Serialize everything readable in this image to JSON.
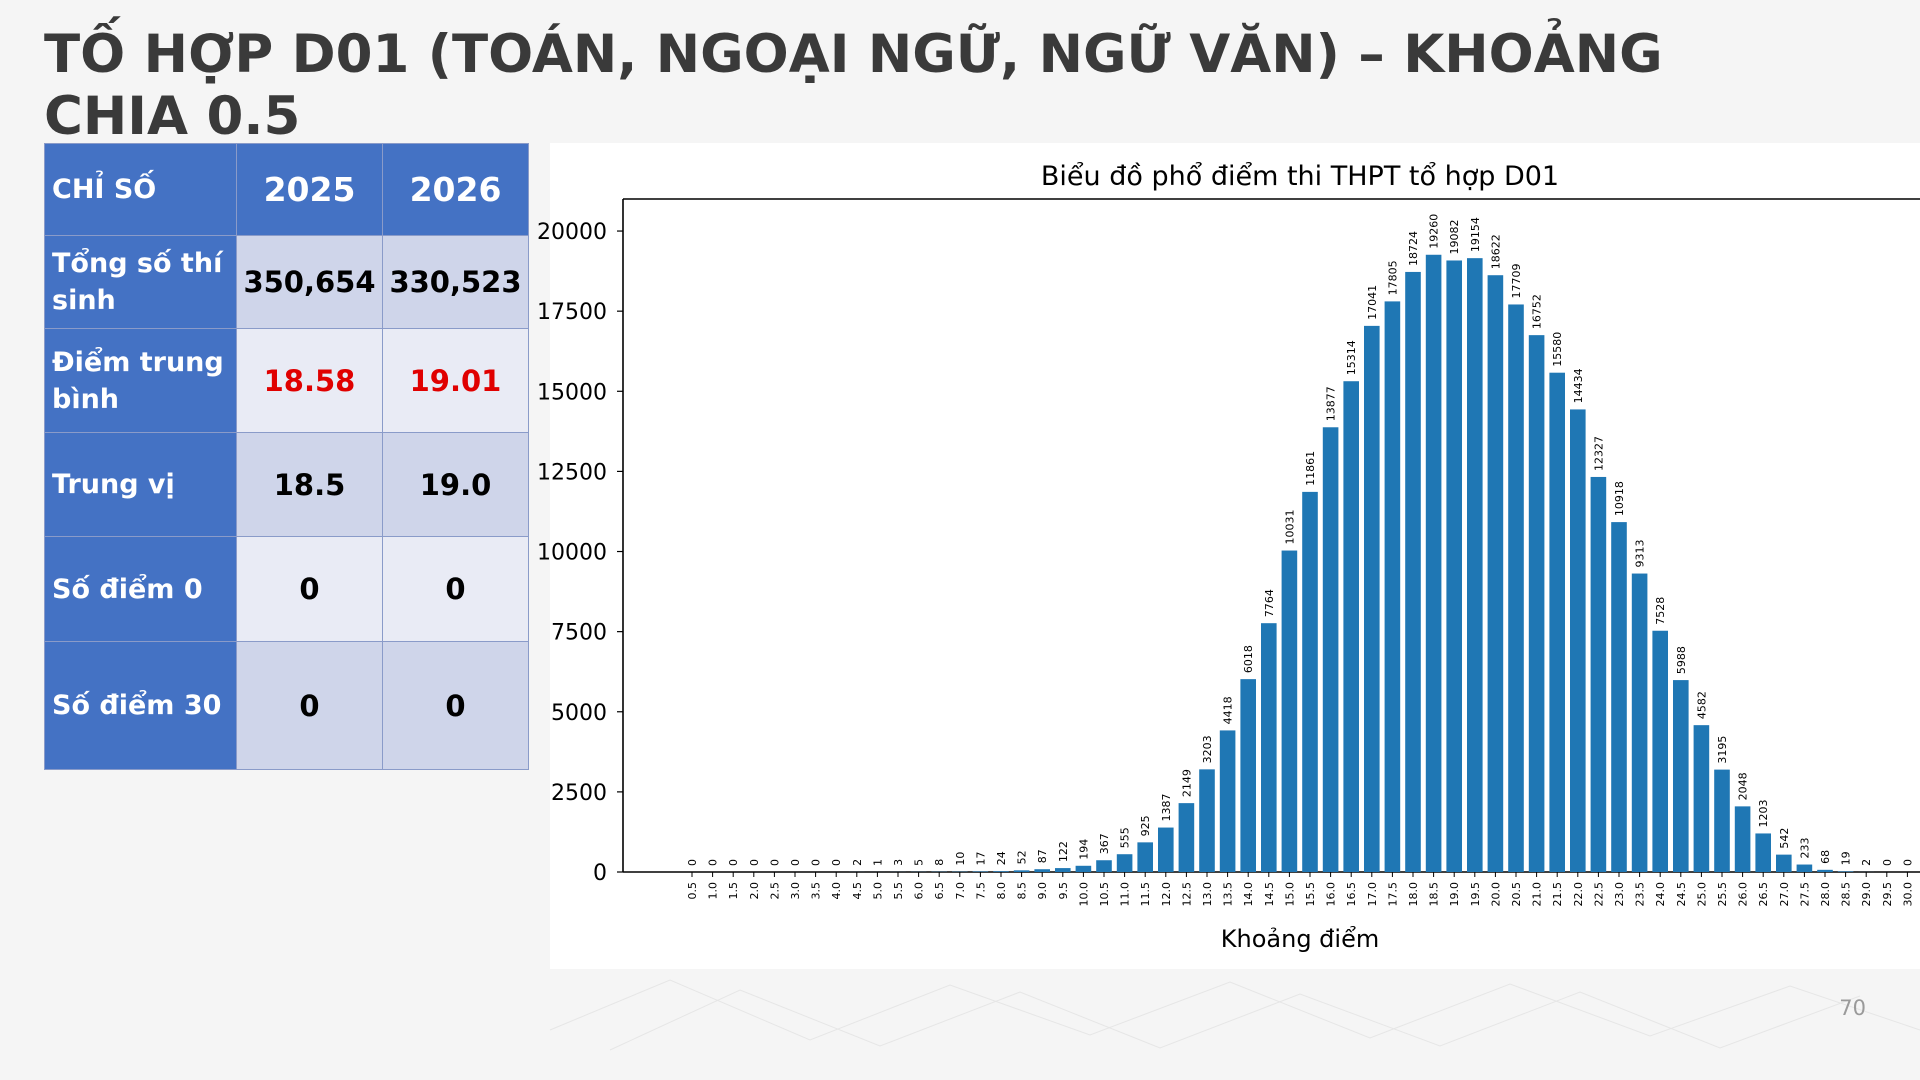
{
  "title": "TỐ HỢP D01 (TOÁN, NGOẠI NGỮ, NGỮ VĂN) – KHOẢNG CHIA 0.5",
  "page_number": "70",
  "table": {
    "header": {
      "label": "CHỈ SỐ",
      "years": [
        "2025",
        "2026"
      ]
    },
    "rows": [
      {
        "label": "Tổng số thí sinh",
        "values": [
          "350,654",
          "330,523"
        ],
        "highlight": false
      },
      {
        "label": "Điểm trung bình",
        "values": [
          "18.58",
          "19.01"
        ],
        "highlight": true
      },
      {
        "label": "Trung vị",
        "values": [
          "18.5",
          "19.0"
        ],
        "highlight": false
      },
      {
        "label": "Số điểm 0",
        "values": [
          "0",
          "0"
        ],
        "highlight": false
      },
      {
        "label": "Số điểm 30",
        "values": [
          "0",
          "0"
        ],
        "highlight": false
      }
    ]
  },
  "colors": {
    "header_bg": "#4472c4",
    "highlight_text": "#e00000",
    "bar": "#1f77b4"
  },
  "chart_data": {
    "type": "bar",
    "title": "Biểu đồ phổ điểm thi THPT tổ hợp D01",
    "xlabel": "Khoảng điểm",
    "ylabel": "",
    "ylim": [
      0,
      21000
    ],
    "ytick_labels": [
      "0",
      "2500",
      "5000",
      "7500",
      "10000",
      "12500",
      "15000",
      "17500",
      "20000"
    ],
    "ytick_values": [
      0,
      2500,
      5000,
      7500,
      10000,
      12500,
      15000,
      17500,
      20000
    ],
    "categories": [
      "0.5",
      "1.0",
      "1.5",
      "2.0",
      "2.5",
      "3.0",
      "3.5",
      "4.0",
      "4.5",
      "5.0",
      "5.5",
      "6.0",
      "6.5",
      "7.0",
      "7.5",
      "8.0",
      "8.5",
      "9.0",
      "9.5",
      "10.0",
      "10.5",
      "11.0",
      "11.5",
      "12.0",
      "12.5",
      "13.0",
      "13.5",
      "14.0",
      "14.5",
      "15.0",
      "15.5",
      "16.0",
      "16.5",
      "17.0",
      "17.5",
      "18.0",
      "18.5",
      "19.0",
      "19.5",
      "20.0",
      "20.5",
      "21.0",
      "21.5",
      "22.0",
      "22.5",
      "23.0",
      "23.5",
      "24.0",
      "24.5",
      "25.0",
      "25.5",
      "26.0",
      "26.5",
      "27.0",
      "27.5",
      "28.0",
      "28.5",
      "29.0",
      "29.5",
      "30.0"
    ],
    "values": [
      0,
      0,
      0,
      0,
      0,
      0,
      0,
      0,
      2,
      1,
      3,
      5,
      8,
      10,
      17,
      24,
      52,
      87,
      122,
      194,
      367,
      555,
      925,
      1387,
      2149,
      3203,
      4418,
      6018,
      7764,
      10031,
      11861,
      13877,
      15314,
      17041,
      17805,
      18724,
      19260,
      19082,
      19154,
      18622,
      17709,
      16752,
      15580,
      14434,
      12327,
      10918,
      9313,
      7528,
      5988,
      4582,
      3195,
      2048,
      1203,
      542,
      233,
      68,
      19,
      2,
      0,
      0
    ],
    "grid": false
  }
}
